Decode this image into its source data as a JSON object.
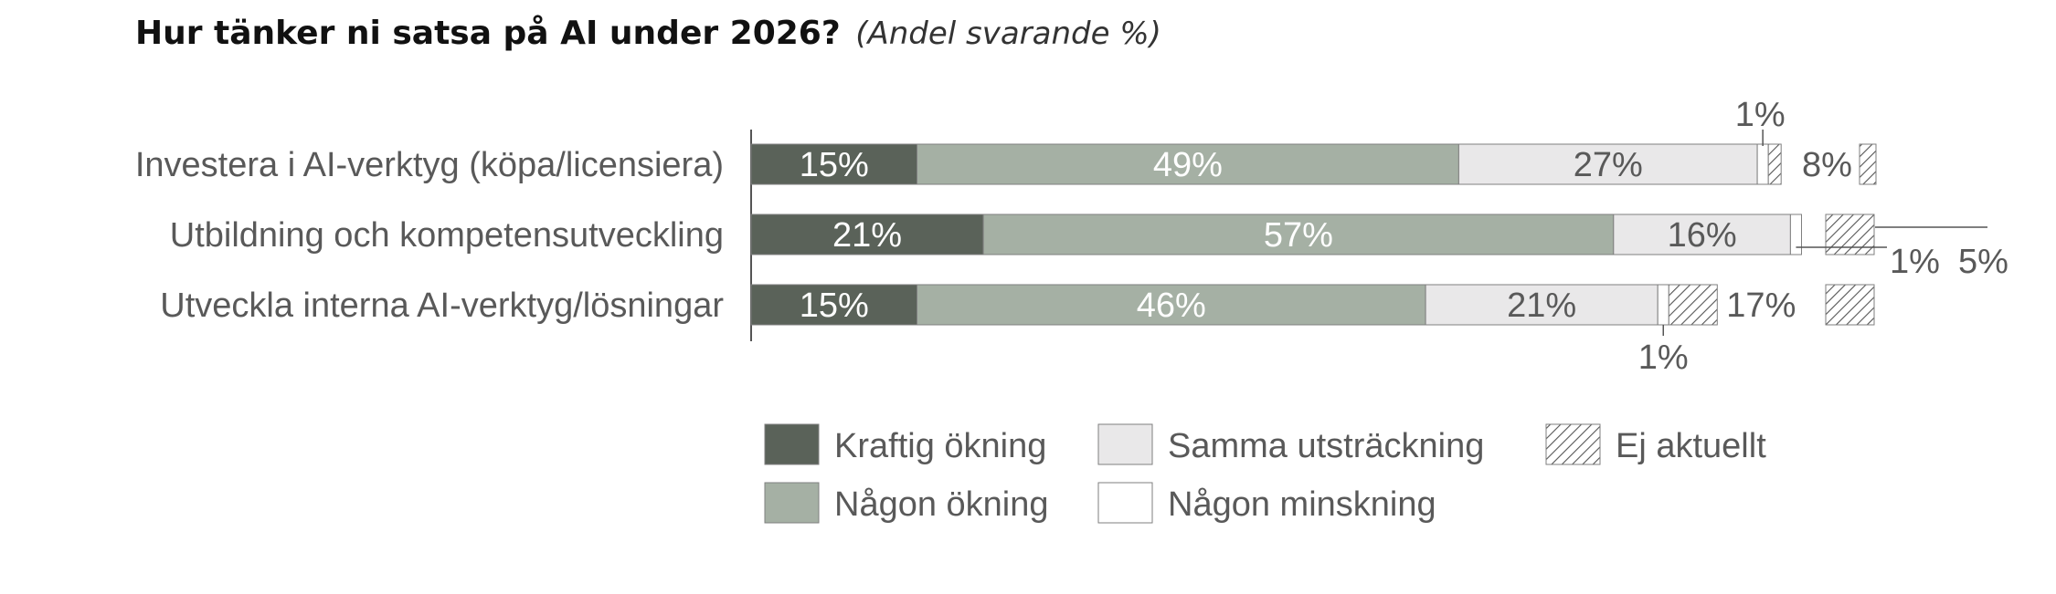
{
  "chart_data": {
    "type": "bar",
    "orientation": "horizontal",
    "stacked": true,
    "title": "Hur tänker ni satsa på AI under 2026?",
    "subtitle": "(Andel svarande %)",
    "categories": [
      "Investera i AI-verktyg (köpa/licensiera)",
      "Utbildning och kompetensutveckling",
      "Utveckla interna AI-verktyg/lösningar"
    ],
    "series": [
      {
        "name": "Kraftig ökning",
        "color": "#5a6259",
        "pattern": "solid",
        "values": [
          15,
          21,
          15
        ],
        "labels": [
          "15%",
          "21%",
          "15%"
        ]
      },
      {
        "name": "Någon ökning",
        "color": "#a5b0a4",
        "pattern": "solid",
        "values": [
          49,
          57,
          46
        ],
        "labels": [
          "49%",
          "57%",
          "46%"
        ]
      },
      {
        "name": "Samma utsträckning",
        "color": "#e9e8e9",
        "pattern": "solid",
        "values": [
          27,
          16,
          21
        ],
        "labels": [
          "27%",
          "16%",
          "21%"
        ]
      },
      {
        "name": "Någon minskning",
        "color": "#ffffff",
        "pattern": "solid",
        "values": [
          1,
          1,
          1
        ],
        "labels": [
          "1%",
          "1%",
          "1%"
        ]
      },
      {
        "name": "Ej aktuellt",
        "color": "#ffffff",
        "pattern": "hatch",
        "values": [
          8,
          5,
          17
        ],
        "labels": [
          "8%",
          "5%",
          "17%"
        ]
      }
    ],
    "xlim": [
      0,
      100
    ],
    "grid": false,
    "legend": "bottom"
  }
}
